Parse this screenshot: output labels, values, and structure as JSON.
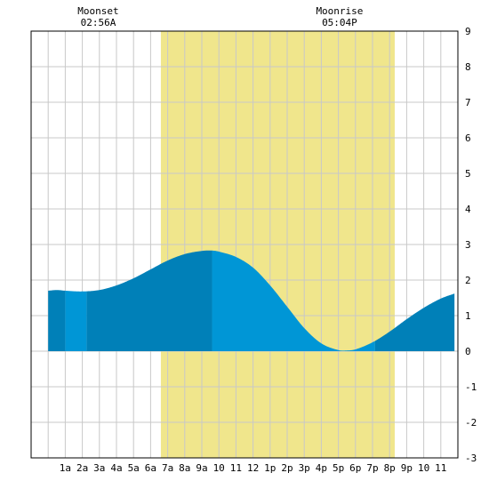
{
  "chart_data": {
    "type": "area",
    "title": "",
    "xlabel": "",
    "ylabel": "",
    "x_tick_labels": [
      "1a",
      "2a",
      "3a",
      "4a",
      "5a",
      "6a",
      "7a",
      "8a",
      "9a",
      "10",
      "11",
      "12",
      "1p",
      "2p",
      "3p",
      "4p",
      "5p",
      "6p",
      "7p",
      "8p",
      "9p",
      "10",
      "11"
    ],
    "x_range_hours": [
      -1,
      24
    ],
    "ylim": [
      -3,
      9
    ],
    "y_ticks": [
      -3,
      -2,
      -1,
      0,
      1,
      2,
      3,
      4,
      5,
      6,
      7,
      8,
      9
    ],
    "grid": true,
    "daylight_hours": [
      6.6,
      20.3
    ],
    "series": [
      {
        "values_hour": [
          0,
          0.5,
          1,
          2,
          3,
          4,
          5,
          6,
          7,
          8,
          9,
          9.6,
          10,
          11,
          12,
          13,
          14,
          15,
          16,
          17,
          17.5,
          18,
          19,
          20,
          21,
          22,
          23,
          23.8
        ],
        "values_height": [
          1.7,
          1.72,
          1.7,
          1.68,
          1.72,
          1.85,
          2.05,
          2.3,
          2.55,
          2.73,
          2.82,
          2.83,
          2.8,
          2.65,
          2.35,
          1.85,
          1.25,
          0.65,
          0.22,
          0.03,
          0.02,
          0.05,
          0.25,
          0.55,
          0.9,
          1.22,
          1.48,
          1.62
        ]
      }
    ],
    "colors": {
      "daylight": "#f0e68c",
      "water_light": "#0096d6",
      "water_dark": "#0080b8",
      "grid": "#c8c8c8"
    },
    "annotations": [
      {
        "label": "Moonset",
        "time": "02:56A",
        "hour": 2.93
      },
      {
        "label": "Moonrise",
        "time": "05:04P",
        "hour": 17.07
      }
    ]
  }
}
